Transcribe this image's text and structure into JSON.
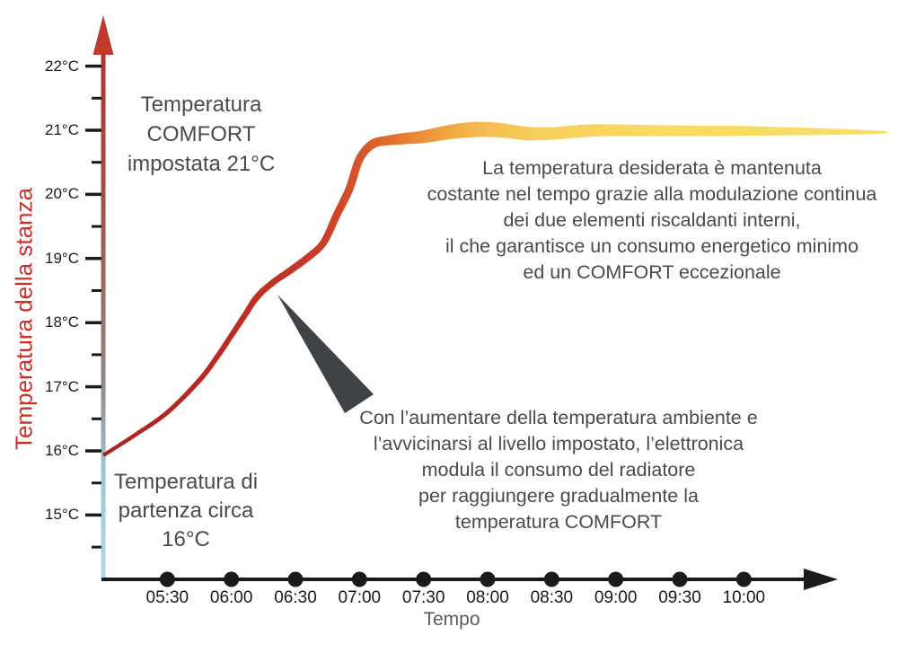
{
  "y_axis": {
    "label": "Temperatura della stanza",
    "label_color": "#cf2d26",
    "tick_labels": [
      "22°C",
      "21°C",
      "20°C",
      "19°C",
      "18°C",
      "17°C",
      "16°C",
      "15°C"
    ],
    "tick_values": [
      22,
      21,
      20,
      19,
      18,
      17,
      16,
      15
    ],
    "minor_tick_values": [
      21.5,
      20.5,
      19.5,
      18.5,
      17.5,
      16.5,
      15.5,
      14.5
    ]
  },
  "x_axis": {
    "label": "Tempo",
    "tick_labels": [
      "05:30",
      "06:00",
      "06:30",
      "07:00",
      "07:30",
      "08:00",
      "08:30",
      "09:00",
      "09:30",
      "10:00"
    ],
    "tick_hours": [
      5.5,
      6.0,
      6.5,
      7.0,
      7.5,
      8.0,
      8.5,
      9.0,
      9.5,
      10.0
    ]
  },
  "annotations": {
    "comfort": {
      "lines": [
        "Temperatura",
        "COMFORT",
        "impostata 21°C"
      ]
    },
    "maintain": {
      "lines": [
        "La temperatura desiderata è mantenuta",
        "costante nel tempo grazie alla modulazione continua",
        "dei due elementi riscaldanti interni,",
        "il che garantisce un consumo energetico minimo",
        "ed un COMFORT eccezionale"
      ]
    },
    "modulate": {
      "lines": [
        "Con l’aumentare della temperatura ambiente e",
        "l’avvicinarsi al livello impostato, l’elettronica",
        "modula il consumo del radiatore",
        "per raggiungere gradualmente la",
        "temperatura COMFORT"
      ]
    },
    "start": {
      "lines": [
        "Temperatura di",
        "partenza circa",
        "16°C"
      ]
    }
  },
  "chart_data": {
    "type": "line",
    "title": "",
    "xlabel": "Tempo",
    "ylabel": "Temperatura della stanza",
    "x_tick_labels": [
      "05:30",
      "06:00",
      "06:30",
      "07:00",
      "07:30",
      "08:00",
      "08:30",
      "09:00",
      "09:30",
      "10:00"
    ],
    "y_tick_labels": [
      "15°C",
      "16°C",
      "17°C",
      "18°C",
      "19°C",
      "20°C",
      "21°C",
      "22°C"
    ],
    "ylim": [
      14.4,
      22.4
    ],
    "xlim_hours": [
      5.0,
      11.2
    ],
    "grid": false,
    "legend": "none",
    "comfort_setpoint_c": 21,
    "start_temperature_c": 16,
    "series": [
      {
        "name": "Temperatura della stanza",
        "note": "points are [time_hours, temp_C, ribbon_width_px]",
        "points": [
          [
            5.0,
            15.93,
            4.0
          ],
          [
            5.25,
            16.25,
            4.5
          ],
          [
            5.5,
            16.6,
            5.0
          ],
          [
            5.75,
            17.1,
            5.5
          ],
          [
            5.9,
            17.5,
            6.0
          ],
          [
            6.0,
            17.8,
            6.0
          ],
          [
            6.1,
            18.1,
            6.5
          ],
          [
            6.2,
            18.4,
            7.0
          ],
          [
            6.32,
            18.62,
            7.0
          ],
          [
            6.45,
            18.8,
            7.5
          ],
          [
            6.6,
            19.02,
            8.0
          ],
          [
            6.72,
            19.25,
            8.0
          ],
          [
            6.82,
            19.67,
            8.5
          ],
          [
            6.92,
            20.08,
            9.0
          ],
          [
            7.0,
            20.55,
            9.0
          ],
          [
            7.1,
            20.78,
            10.0
          ],
          [
            7.22,
            20.84,
            11.0
          ],
          [
            7.35,
            20.87,
            12.5
          ],
          [
            7.5,
            20.9,
            14.0
          ],
          [
            7.7,
            20.97,
            16.0
          ],
          [
            7.9,
            21.01,
            17.0
          ],
          [
            8.1,
            21.0,
            16.0
          ],
          [
            8.3,
            20.95,
            15.0
          ],
          [
            8.5,
            20.95,
            14.0
          ],
          [
            8.75,
            20.99,
            14.0
          ],
          [
            9.0,
            21.0,
            13.0
          ],
          [
            9.5,
            20.99,
            12.0
          ],
          [
            10.0,
            20.99,
            11.0
          ],
          [
            10.5,
            20.98,
            8.0
          ],
          [
            11.0,
            20.97,
            4.0
          ],
          [
            11.12,
            20.97,
            1.5
          ]
        ]
      }
    ],
    "curve_gradient": [
      [
        0.0,
        "#ab231f"
      ],
      [
        0.15,
        "#b82a22"
      ],
      [
        0.24,
        "#c43427"
      ],
      [
        0.29,
        "#cc4227"
      ],
      [
        0.33,
        "#d6572a"
      ],
      [
        0.37,
        "#e2712e"
      ],
      [
        0.4,
        "#ea8c37"
      ],
      [
        0.44,
        "#f0a843"
      ],
      [
        0.49,
        "#f4bf52"
      ],
      [
        0.56,
        "#f6d05c"
      ],
      [
        0.72,
        "#f8da64"
      ],
      [
        1.0,
        "#f8dc66"
      ]
    ],
    "axis_gradient": [
      [
        0.0,
        "#b93028"
      ],
      [
        0.3,
        "#a05347"
      ],
      [
        0.5,
        "#997169"
      ],
      [
        0.62,
        "#958487"
      ],
      [
        0.78,
        "#9cc2cf"
      ],
      [
        1.0,
        "#a9dcec"
      ]
    ]
  },
  "colors": {
    "curve_red": "#b5271f",
    "curve_orange": "#d6572a",
    "curve_yellow": "#f8dc66",
    "y_axis_arrow": "#c0392b",
    "x_axis": "#1a1a1a",
    "dot": "#1a1a1a",
    "pointer": "#3e4347",
    "annotation_text": "#4a4a4a",
    "tick_label": "#1a1a1a",
    "x_label": "#595959",
    "y_title": "#cf2d26"
  }
}
